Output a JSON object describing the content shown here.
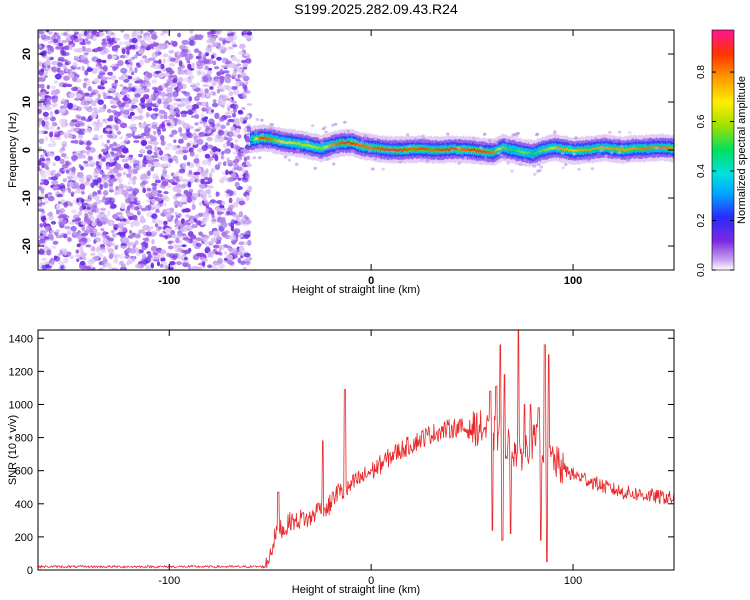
{
  "title": "S199.2025.282.09.43.R24",
  "chart_data": [
    {
      "type": "heatmap",
      "xlabel": "Height of straight line (km)",
      "ylabel": "Frequency (Hz)",
      "xlim": [
        -165,
        150
      ],
      "ylim": [
        -25,
        25
      ],
      "xticks": [
        -100,
        0,
        100
      ],
      "yticks": [
        -20,
        -10,
        0,
        10,
        20
      ],
      "colorbar": {
        "label": "Normalized spectral amplitude",
        "ticks": [
          0.0,
          0.2,
          0.4,
          0.6,
          0.8
        ],
        "range": [
          0.0,
          0.97
        ]
      },
      "noise_region_x": [
        -165,
        -60
      ],
      "ridge": {
        "x": [
          -60,
          -55,
          -50,
          -45,
          -40,
          -35,
          -30,
          -25,
          -20,
          -15,
          -10,
          -5,
          0,
          5,
          10,
          15,
          20,
          25,
          30,
          35,
          40,
          45,
          50,
          55,
          60,
          65,
          70,
          75,
          80,
          85,
          90,
          95,
          100,
          105,
          110,
          115,
          120,
          125,
          130,
          135,
          140,
          145,
          150
        ],
        "freq": [
          2,
          2.5,
          2.3,
          1.8,
          1.5,
          1.2,
          0.8,
          0.3,
          1.0,
          1.5,
          1.5,
          0.8,
          0.5,
          0.2,
          0.0,
          0.0,
          0.2,
          0.2,
          0.0,
          0.0,
          0.2,
          0.1,
          0.0,
          -0.3,
          -0.5,
          0.5,
          0.0,
          -0.5,
          -0.8,
          0.0,
          0.5,
          0.2,
          -0.2,
          0.0,
          0.2,
          0.5,
          0.2,
          0.0,
          0.3,
          0.3,
          0.5,
          0.5,
          0.3
        ],
        "amplitude": [
          0.4,
          0.9,
          0.85,
          0.7,
          0.7,
          0.6,
          0.65,
          0.6,
          0.8,
          0.9,
          0.9,
          0.85,
          0.85,
          0.9,
          0.95,
          0.9,
          0.85,
          0.9,
          0.85,
          0.9,
          0.9,
          0.85,
          0.9,
          0.9,
          0.85,
          0.6,
          0.5,
          0.6,
          0.5,
          0.6,
          0.7,
          0.8,
          0.75,
          0.8,
          0.8,
          0.75,
          0.8,
          0.8,
          0.8,
          0.85,
          0.8,
          0.85,
          0.8
        ]
      }
    },
    {
      "type": "line",
      "xlabel": "Height of straight line (km)",
      "ylabel": "SNR (10 * v/v)",
      "xlim": [
        -165,
        150
      ],
      "ylim": [
        0,
        1450
      ],
      "xticks": [
        -100,
        0,
        100
      ],
      "yticks": [
        0,
        200,
        400,
        600,
        800,
        1000,
        1200,
        1400
      ],
      "color": "#e8282a",
      "baseline": {
        "x_end": -52,
        "value": 20
      },
      "x": [
        -52,
        -49,
        -46,
        -43,
        -40,
        -37,
        -34,
        -31,
        -28,
        -25,
        -22,
        -19,
        -16,
        -13,
        -10,
        -7,
        -4,
        -1,
        2,
        5,
        8,
        11,
        14,
        17,
        20,
        23,
        26,
        29,
        32,
        35,
        38,
        41,
        44,
        47,
        50,
        53,
        56,
        59,
        62,
        65,
        68,
        71,
        74,
        77,
        80,
        83,
        86,
        89,
        92,
        95,
        98,
        101,
        104,
        107,
        110,
        113,
        116,
        119,
        122,
        125,
        128,
        131,
        134,
        137,
        140,
        143,
        146,
        149
      ],
      "values": [
        30,
        140,
        270,
        240,
        300,
        290,
        320,
        300,
        340,
        400,
        360,
        430,
        480,
        460,
        510,
        540,
        560,
        590,
        610,
        640,
        670,
        700,
        720,
        740,
        760,
        780,
        800,
        820,
        830,
        840,
        850,
        860,
        860,
        850,
        850,
        860,
        850,
        830,
        820,
        800,
        760,
        720,
        700,
        740,
        780,
        770,
        720,
        690,
        640,
        610,
        590,
        570,
        560,
        545,
        530,
        515,
        500,
        490,
        480,
        470,
        465,
        460,
        455,
        450,
        445,
        440,
        440,
        430
      ],
      "spikes": [
        {
          "x": -46,
          "value": 470
        },
        {
          "x": -24,
          "value": 780
        },
        {
          "x": -19,
          "value": 470
        },
        {
          "x": -13,
          "value": 1090
        },
        {
          "x": 59,
          "value": 1080
        },
        {
          "x": 62,
          "value": 1110
        },
        {
          "x": 64,
          "value": 1360
        },
        {
          "x": 66,
          "value": 1180
        },
        {
          "x": 73,
          "value": 1450
        },
        {
          "x": 76,
          "value": 1000
        },
        {
          "x": 79,
          "value": 1000
        },
        {
          "x": 83,
          "value": 980
        },
        {
          "x": 86,
          "value": 1360
        },
        {
          "x": 88,
          "value": 1300
        }
      ],
      "dips": [
        {
          "x": 60,
          "value": 240
        },
        {
          "x": 65,
          "value": 180
        },
        {
          "x": 69,
          "value": 220
        },
        {
          "x": 84,
          "value": 180
        },
        {
          "x": 87,
          "value": 50
        }
      ]
    }
  ]
}
